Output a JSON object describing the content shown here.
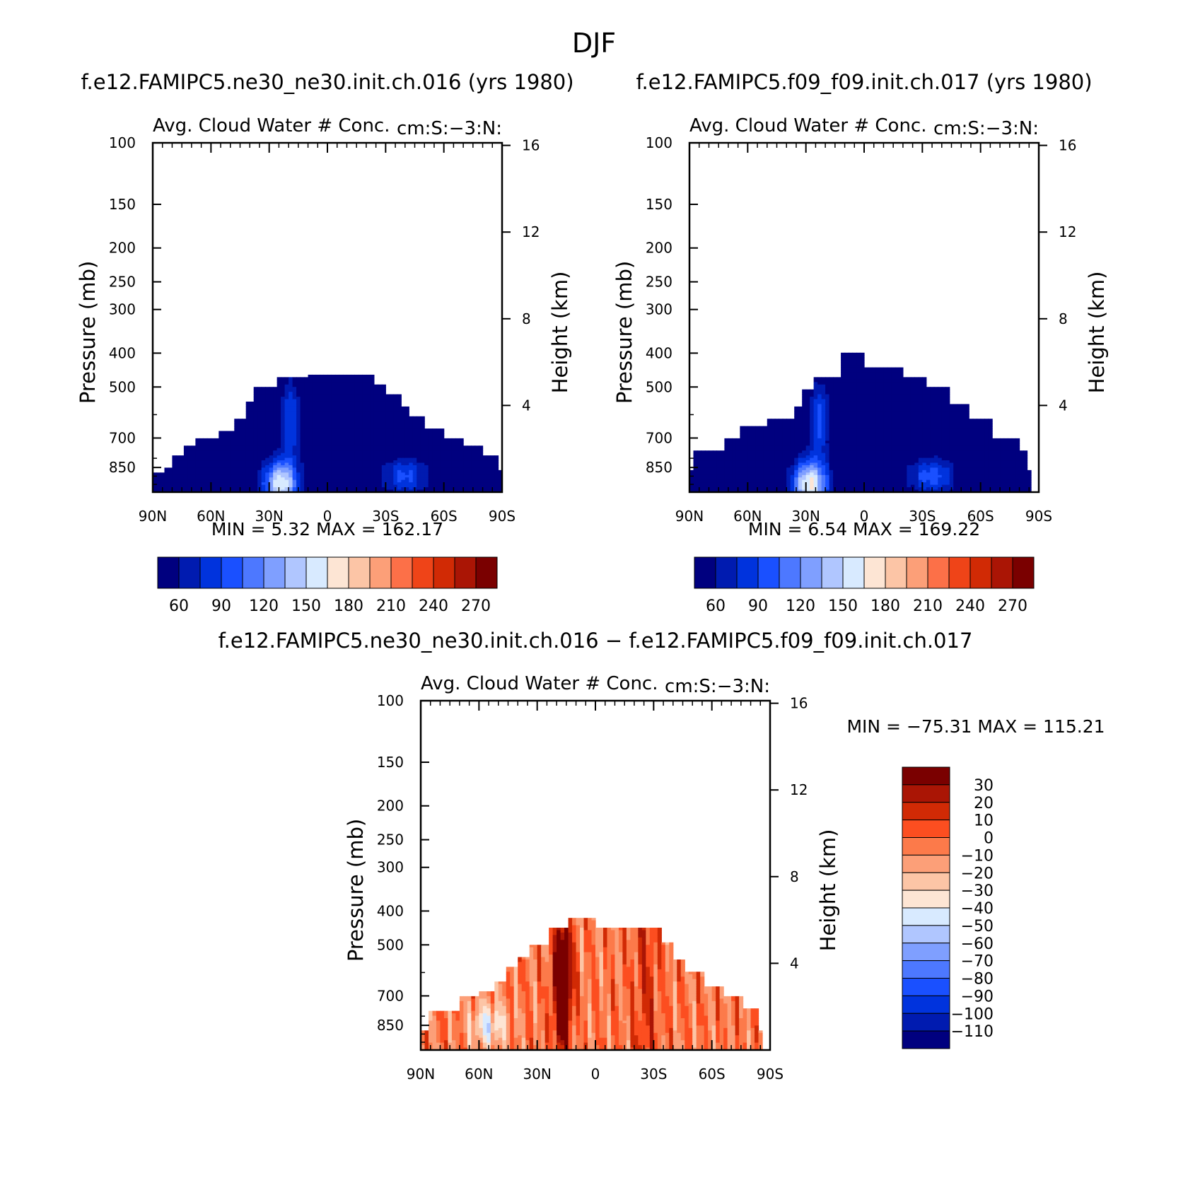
{
  "figure": {
    "title": "DJF"
  },
  "chart_data": [
    {
      "type": "heatmap",
      "case_title": "f.e12.FAMIPC5.ne30_ne30.init.ch.016 (yrs 1980)",
      "left_string": "Avg. Cloud Water # Conc.",
      "right_string": "cm:S:-3:N:",
      "ylabel": "Pressure (mb)",
      "ylabel_right": "Height (km)",
      "x_ticks": [
        "90N",
        "60N",
        "30N",
        "0",
        "30S",
        "60S",
        "90S"
      ],
      "x_values": [
        90,
        60,
        30,
        0,
        -30,
        -60,
        -90
      ],
      "xlim": [
        90,
        -90
      ],
      "y_ticks": [
        100,
        150,
        200,
        250,
        300,
        400,
        500,
        700,
        850
      ],
      "ylim": [
        100,
        1000
      ],
      "y_scale": "log",
      "height_ticks": [
        16,
        12,
        8,
        4
      ],
      "min_label": "MIN =",
      "min_value": "5.32",
      "max_label": "MAX =",
      "max_value": "162.17",
      "colorbar": {
        "orientation": "horizontal",
        "levels": [
          60,
          75,
          90,
          105,
          120,
          135,
          150,
          165,
          180,
          195,
          210,
          225,
          240,
          255,
          270
        ],
        "tick_labels": [
          "60",
          "90",
          "120",
          "150",
          "180",
          "210",
          "240",
          "270"
        ],
        "colors": [
          "#00007f",
          "#001bb0",
          "#0033dd",
          "#1a50ff",
          "#4d78ff",
          "#7f9fff",
          "#b0c6ff",
          "#d8eaff",
          "#fde5d4",
          "#fcc5a6",
          "#fc9f78",
          "#fc7048",
          "#ef4418",
          "#d12a05",
          "#aa1505",
          "#7a0000"
        ]
      },
      "profile": {
        "top_level": [
          {
            "lat": 88,
            "p": 880
          },
          {
            "lat": 84,
            "p": 845
          },
          {
            "lat": 80,
            "p": 785
          },
          {
            "lat": 74,
            "p": 740
          },
          {
            "lat": 68,
            "p": 700
          },
          {
            "lat": 56,
            "p": 670
          },
          {
            "lat": 48,
            "p": 620
          },
          {
            "lat": 42,
            "p": 555
          },
          {
            "lat": 38,
            "p": 500
          },
          {
            "lat": 26,
            "p": 470
          },
          {
            "lat": 20,
            "p": 470
          },
          {
            "lat": 10,
            "p": 460
          },
          {
            "lat": 0,
            "p": 460
          },
          {
            "lat": -20,
            "p": 460
          },
          {
            "lat": -24,
            "p": 490
          },
          {
            "lat": -30,
            "p": 525
          },
          {
            "lat": -38,
            "p": 565
          },
          {
            "lat": -42,
            "p": 610
          },
          {
            "lat": -50,
            "p": 660
          },
          {
            "lat": -60,
            "p": 700
          },
          {
            "lat": -70,
            "p": 740
          },
          {
            "lat": -80,
            "p": 790
          },
          {
            "lat": -88,
            "p": 860
          }
        ],
        "maximum": {
          "lat": 24,
          "p": 950,
          "value": 162.17
        },
        "secondary": {
          "lat": -40,
          "p": 900,
          "value": 95
        }
      }
    },
    {
      "type": "heatmap",
      "case_title": "f.e12.FAMIPC5.f09_f09.init.ch.017 (yrs 1980)",
      "left_string": "Avg. Cloud Water # Conc.",
      "right_string": "cm:S:-3:N:",
      "ylabel": "Pressure (mb)",
      "ylabel_right": "Height (km)",
      "x_ticks": [
        "90N",
        "60N",
        "30N",
        "0",
        "30S",
        "60S",
        "90S"
      ],
      "x_values": [
        90,
        60,
        30,
        0,
        -30,
        -60,
        -90
      ],
      "xlim": [
        90,
        -90
      ],
      "y_ticks": [
        100,
        150,
        200,
        250,
        300,
        400,
        500,
        700,
        850
      ],
      "ylim": [
        100,
        1000
      ],
      "y_scale": "log",
      "height_ticks": [
        16,
        12,
        8,
        4
      ],
      "min_label": "MIN =",
      "min_value": "6.54",
      "max_label": "MAX =",
      "max_value": "169.22",
      "colorbar": {
        "orientation": "horizontal",
        "levels": [
          60,
          75,
          90,
          105,
          120,
          135,
          150,
          165,
          180,
          195,
          210,
          225,
          240,
          255,
          270
        ],
        "tick_labels": [
          "60",
          "90",
          "120",
          "150",
          "180",
          "210",
          "240",
          "270"
        ],
        "colors": [
          "#00007f",
          "#001bb0",
          "#0033dd",
          "#1a50ff",
          "#4d78ff",
          "#7f9fff",
          "#b0c6ff",
          "#d8eaff",
          "#fde5d4",
          "#fcc5a6",
          "#fc9f78",
          "#fc7048",
          "#ef4418",
          "#d12a05",
          "#aa1505",
          "#7a0000"
        ]
      },
      "profile": {
        "top_level": [
          {
            "lat": 90,
            "p": 870
          },
          {
            "lat": 88,
            "p": 760
          },
          {
            "lat": 72,
            "p": 700
          },
          {
            "lat": 64,
            "p": 650
          },
          {
            "lat": 50,
            "p": 620
          },
          {
            "lat": 36,
            "p": 565
          },
          {
            "lat": 32,
            "p": 505
          },
          {
            "lat": 26,
            "p": 470
          },
          {
            "lat": 12,
            "p": 400
          },
          {
            "lat": 0,
            "p": 440
          },
          {
            "lat": -20,
            "p": 470
          },
          {
            "lat": -32,
            "p": 500
          },
          {
            "lat": -44,
            "p": 560
          },
          {
            "lat": -54,
            "p": 620
          },
          {
            "lat": -66,
            "p": 700
          },
          {
            "lat": -80,
            "p": 760
          },
          {
            "lat": -84,
            "p": 860
          }
        ],
        "maximum": {
          "lat": 28,
          "p": 950,
          "value": 169.22
        },
        "secondary": {
          "lat": -35,
          "p": 900,
          "value": 100
        }
      }
    },
    {
      "type": "heatmap",
      "case_title": "f.e12.FAMIPC5.ne30_ne30.init.ch.016 - f.e12.FAMIPC5.f09_f09.init.ch.017",
      "left_string": "Avg. Cloud Water # Conc.",
      "right_string": "cm:S:-3:N:",
      "ylabel": "Pressure (mb)",
      "ylabel_right": "Height (km)",
      "x_ticks": [
        "90N",
        "60N",
        "30N",
        "0",
        "30S",
        "60S",
        "90S"
      ],
      "x_values": [
        90,
        60,
        30,
        0,
        -30,
        -60,
        -90
      ],
      "xlim": [
        90,
        -90
      ],
      "y_ticks": [
        100,
        150,
        200,
        250,
        300,
        400,
        500,
        700,
        850
      ],
      "ylim": [
        100,
        1000
      ],
      "y_scale": "log",
      "height_ticks": [
        16,
        12,
        8,
        4
      ],
      "min_label": "MIN =",
      "min_value": "-75.31",
      "max_label": "MAX =",
      "max_value": "115.21",
      "colorbar": {
        "orientation": "vertical",
        "levels": [
          30,
          20,
          10,
          0,
          -10,
          -20,
          -30,
          -40,
          -50,
          -60,
          -70,
          -80,
          -90,
          -100,
          -110
        ],
        "tick_labels": [
          "30",
          "20",
          "10",
          "0",
          "-10",
          "-20",
          "-30",
          "-40",
          "-50",
          "-60",
          "-70",
          "-80",
          "-90",
          "-100",
          "-110"
        ],
        "colors": [
          "#7a0000",
          "#aa1505",
          "#d12a05",
          "#fc4e20",
          "#fc7a4a",
          "#fc9f78",
          "#fcc5a6",
          "#fde5d4",
          "#d8eaff",
          "#b0c6ff",
          "#7f9fff",
          "#4d78ff",
          "#1a50ff",
          "#0033dd",
          "#001bb0",
          "#00007f"
        ]
      },
      "profile": {
        "top_level": [
          {
            "lat": 88,
            "p": 880
          },
          {
            "lat": 86,
            "p": 770
          },
          {
            "lat": 78,
            "p": 770
          },
          {
            "lat": 70,
            "p": 700
          },
          {
            "lat": 60,
            "p": 680
          },
          {
            "lat": 52,
            "p": 640
          },
          {
            "lat": 46,
            "p": 580
          },
          {
            "lat": 40,
            "p": 540
          },
          {
            "lat": 34,
            "p": 500
          },
          {
            "lat": 24,
            "p": 450
          },
          {
            "lat": 14,
            "p": 420
          },
          {
            "lat": 0,
            "p": 450
          },
          {
            "lat": -28,
            "p": 450
          },
          {
            "lat": -34,
            "p": 490
          },
          {
            "lat": -40,
            "p": 550
          },
          {
            "lat": -46,
            "p": 600
          },
          {
            "lat": -56,
            "p": 660
          },
          {
            "lat": -66,
            "p": 700
          },
          {
            "lat": -76,
            "p": 760
          },
          {
            "lat": -84,
            "p": 880
          }
        ],
        "maximum": {
          "lat": 17,
          "p": 650,
          "value": 115.21
        },
        "secondary": {
          "lat": -26,
          "p": 560,
          "value": 20
        }
      }
    }
  ]
}
